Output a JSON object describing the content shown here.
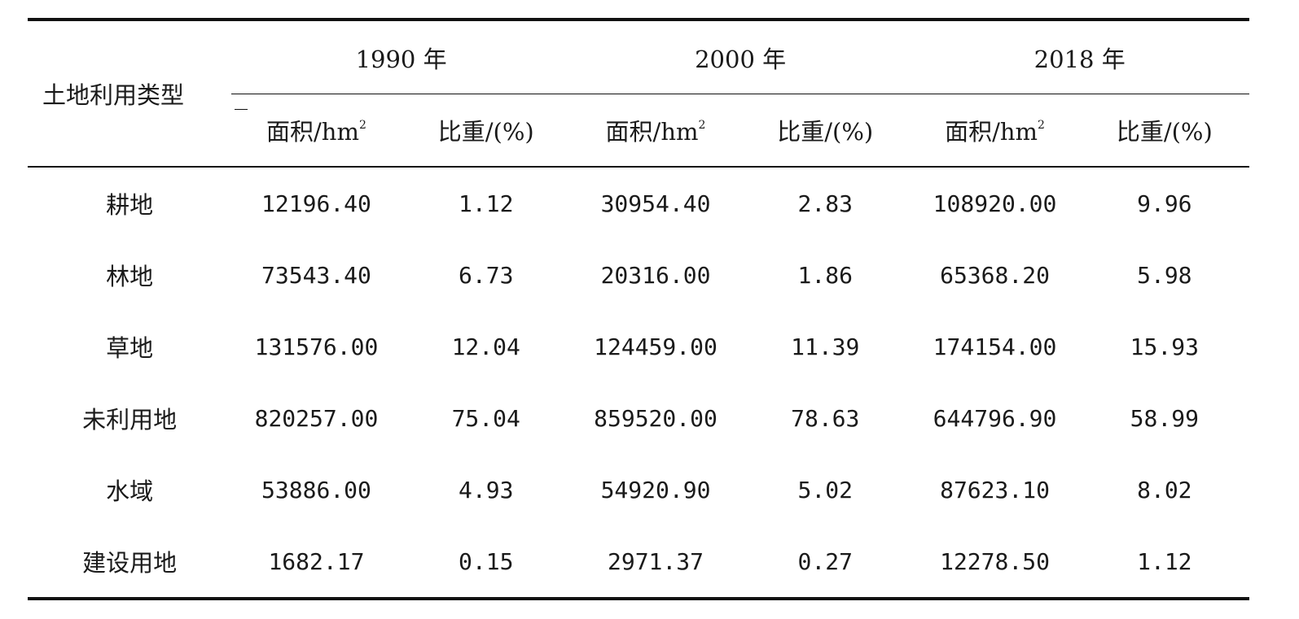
{
  "chart_data": {
    "type": "table",
    "row_header": "土地利用类型",
    "years": [
      "1990 年",
      "2000 年",
      "2018 年"
    ],
    "sub_headers": [
      {
        "label": "面积/hm",
        "sup": "2"
      },
      {
        "label": "比重/(%)",
        "sup": ""
      }
    ],
    "rows": [
      {
        "type": "耕地",
        "values": [
          "12196.40",
          "1.12",
          "30954.40",
          "2.83",
          "108920.00",
          "9.96"
        ]
      },
      {
        "type": "林地",
        "values": [
          "73543.40",
          "6.73",
          "20316.00",
          "1.86",
          "65368.20",
          "5.98"
        ]
      },
      {
        "type": "草地",
        "values": [
          "131576.00",
          "12.04",
          "124459.00",
          "11.39",
          "174154.00",
          "15.93"
        ]
      },
      {
        "type": "未利用地",
        "values": [
          "820257.00",
          "75.04",
          "859520.00",
          "78.63",
          "644796.90",
          "58.99"
        ]
      },
      {
        "type": "水域",
        "values": [
          "53886.00",
          "4.93",
          "54920.90",
          "5.02",
          "87623.10",
          "8.02"
        ]
      },
      {
        "type": "建设用地",
        "values": [
          "1682.17",
          "0.15",
          "2971.37",
          "0.27",
          "12278.50",
          "1.12"
        ]
      }
    ]
  }
}
